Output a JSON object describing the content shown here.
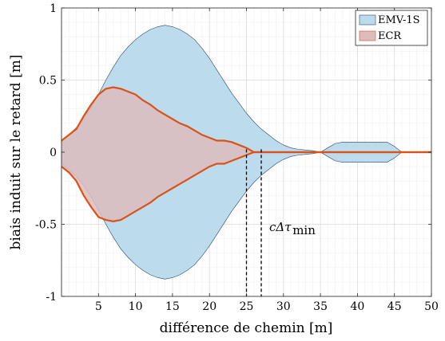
{
  "chart_data": {
    "type": "area",
    "xlabel": "différence de chemin [m]",
    "ylabel": "biais induit sur le retard [m]",
    "xlim": [
      0,
      50
    ],
    "ylim": [
      -1,
      1
    ],
    "xticks": [
      "5",
      "10",
      "15",
      "20",
      "25",
      "30",
      "35",
      "40",
      "45",
      "50"
    ],
    "yticks": [
      "-1",
      "-0.5",
      "0",
      "0.5",
      "1"
    ],
    "grid": true,
    "legend_position": "top-right",
    "colors": {
      "emv_fill": "#bcdcee",
      "emv_edge": "#2b4a66",
      "ecr_fill": "#dcbcbc",
      "ecr_line": "#d95319"
    },
    "series": [
      {
        "name": "EMV-1S",
        "kind": "band",
        "x": [
          0,
          1,
          2,
          3,
          4,
          5,
          6,
          7,
          8,
          9,
          10,
          11,
          12,
          13,
          14,
          15,
          16,
          17,
          18,
          19,
          20,
          21,
          22,
          23,
          24,
          25,
          26,
          27,
          28,
          29,
          30,
          31,
          32,
          33,
          34,
          35,
          36,
          37,
          38,
          39,
          40,
          41,
          42,
          43,
          44,
          45,
          46,
          47,
          48,
          49,
          50
        ],
        "upper": [
          0.08,
          0.12,
          0.17,
          0.23,
          0.31,
          0.4,
          0.5,
          0.59,
          0.67,
          0.73,
          0.78,
          0.82,
          0.85,
          0.87,
          0.88,
          0.87,
          0.85,
          0.82,
          0.78,
          0.72,
          0.65,
          0.57,
          0.49,
          0.41,
          0.34,
          0.27,
          0.21,
          0.16,
          0.12,
          0.08,
          0.05,
          0.03,
          0.02,
          0.015,
          0.01,
          0.0,
          0.03,
          0.06,
          0.07,
          0.07,
          0.07,
          0.07,
          0.07,
          0.07,
          0.07,
          0.04,
          0.0,
          0.0,
          0.0,
          0.0,
          0.0
        ],
        "lower": [
          -0.08,
          -0.12,
          -0.17,
          -0.23,
          -0.31,
          -0.4,
          -0.5,
          -0.59,
          -0.67,
          -0.73,
          -0.78,
          -0.82,
          -0.85,
          -0.87,
          -0.88,
          -0.87,
          -0.85,
          -0.82,
          -0.78,
          -0.72,
          -0.65,
          -0.57,
          -0.49,
          -0.41,
          -0.34,
          -0.27,
          -0.21,
          -0.16,
          -0.12,
          -0.08,
          -0.05,
          -0.03,
          -0.02,
          -0.015,
          -0.01,
          0.0,
          -0.03,
          -0.06,
          -0.07,
          -0.07,
          -0.07,
          -0.07,
          -0.07,
          -0.07,
          -0.07,
          -0.04,
          0.0,
          0.0,
          0.0,
          0.0,
          0.0
        ]
      },
      {
        "name": "ECR",
        "kind": "band",
        "x": [
          0,
          1,
          2,
          3,
          4,
          5,
          6,
          7,
          8,
          9,
          10,
          11,
          12,
          13,
          14,
          15,
          16,
          17,
          18,
          19,
          20,
          21,
          22,
          23,
          24,
          25,
          26,
          27,
          28,
          29,
          30,
          31,
          32,
          33,
          34,
          35,
          36,
          37,
          38,
          39,
          40,
          41,
          42,
          43,
          44,
          45,
          46,
          47,
          48,
          49,
          50
        ],
        "upper": [
          0.08,
          0.12,
          0.16,
          0.25,
          0.33,
          0.4,
          0.44,
          0.45,
          0.44,
          0.42,
          0.4,
          0.36,
          0.33,
          0.29,
          0.26,
          0.23,
          0.2,
          0.18,
          0.15,
          0.12,
          0.1,
          0.08,
          0.08,
          0.07,
          0.05,
          0.03,
          0.0,
          0.0,
          0.0,
          0.0,
          0.0,
          0.0,
          0.0,
          0.0,
          0.0,
          0.0,
          0.0,
          0.0,
          0.0,
          0.0,
          0.0,
          0.0,
          0.0,
          0.0,
          0.0,
          0.0,
          0.0,
          0.0,
          0.0,
          0.0,
          0.0
        ],
        "lower": [
          -0.1,
          -0.14,
          -0.2,
          -0.3,
          -0.38,
          -0.45,
          -0.47,
          -0.48,
          -0.47,
          -0.44,
          -0.41,
          -0.38,
          -0.35,
          -0.31,
          -0.28,
          -0.25,
          -0.22,
          -0.19,
          -0.16,
          -0.13,
          -0.1,
          -0.08,
          -0.08,
          -0.06,
          -0.04,
          -0.02,
          0.0,
          0.0,
          0.0,
          0.0,
          0.0,
          0.0,
          0.0,
          0.0,
          0.0,
          0.0,
          0.0,
          0.0,
          0.0,
          0.0,
          0.0,
          0.0,
          0.0,
          0.0,
          0.0,
          0.0,
          0.0,
          0.0,
          0.0,
          0.0,
          0.0
        ]
      }
    ],
    "vlines": [
      25,
      27
    ],
    "annotation": "cΔτ_min"
  }
}
